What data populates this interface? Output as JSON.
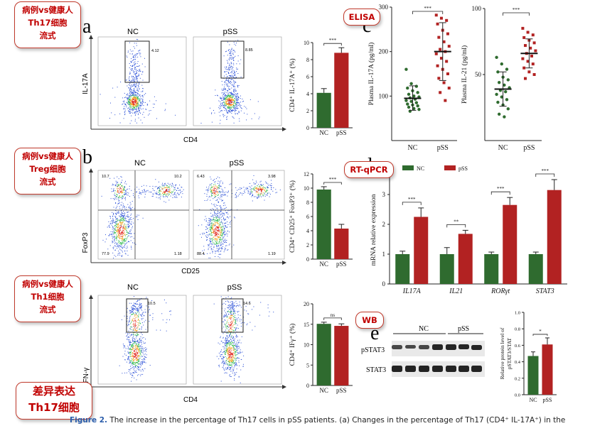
{
  "figure": {
    "panel_letters": {
      "a": "a",
      "b": "b",
      "c": "c",
      "d": "d",
      "e": "e"
    },
    "group_labels": {
      "nc": "NC",
      "pss": "pSS"
    },
    "caption": {
      "figure_label": "Figure 2.",
      "text": " The increase in the percentage of Th17 cells in pSS patients. (a) Changes in the percentage of Th17 (CD4⁺ IL-17A⁺) in the"
    }
  },
  "annotations": {
    "flow_th17": [
      "病例vs健康人",
      "Th17细胞",
      "流式"
    ],
    "flow_treg": [
      "病例vs健康人",
      "Treg细胞",
      "流式"
    ],
    "flow_th1": [
      "病例vs健康人",
      "Th1细胞",
      "流式"
    ],
    "elisa": "ELISA",
    "rtqpcr": "RT-qPCR",
    "wb": "WB",
    "conclusion": [
      "差异表达",
      "Th17细胞"
    ]
  },
  "flow_panels": {
    "a": {
      "y_label": "IL-17A",
      "x_label": "CD4",
      "nc_gate": "4.12",
      "pss_gate": "8.85"
    },
    "b": {
      "y_label": "FoxP3",
      "x_label": "CD25",
      "nc_quadrants": [
        "10.7",
        "10.2",
        "77.9",
        "1.18"
      ],
      "pss_quadrants": [
        "6.43",
        "3.98",
        "88.4",
        "1.19"
      ]
    },
    "c": {
      "y_label": "IFN-γ",
      "x_label": "CD4",
      "nc_gate": "10.5",
      "pss_gate": "14.6"
    }
  },
  "colors": {
    "nc": "#2f6b2f",
    "pss": "#b22222",
    "callout": "#c00000"
  },
  "chart_data": [
    {
      "type": "bar",
      "id": "th17_pct",
      "ylabel": "CD4⁺ IL-17A⁺ (%)",
      "categories": [
        "NC",
        "pSS"
      ],
      "values": [
        4.1,
        8.8
      ],
      "errors": [
        0.5,
        0.6
      ],
      "ylim": [
        0,
        10
      ],
      "yticks": [
        0,
        2,
        4,
        6,
        8,
        10
      ],
      "significance": "***"
    },
    {
      "type": "bar",
      "id": "treg_pct",
      "ylabel": "CD4⁺ CD25⁺ FoxP3⁺ (%)",
      "categories": [
        "NC",
        "pSS"
      ],
      "values": [
        9.8,
        4.3
      ],
      "errors": [
        0.4,
        0.6
      ],
      "ylim": [
        0,
        12
      ],
      "yticks": [
        0,
        2,
        4,
        6,
        8,
        10,
        12
      ],
      "significance": "***"
    },
    {
      "type": "bar",
      "id": "th1_pct",
      "ylabel": "CD4⁺ IFγ⁺ (%)",
      "categories": [
        "NC",
        "pSS"
      ],
      "values": [
        15.1,
        14.6
      ],
      "errors": [
        0.4,
        0.5
      ],
      "ylim": [
        0,
        20
      ],
      "yticks": [
        0,
        5,
        10,
        15,
        20
      ],
      "significance": "ns"
    },
    {
      "type": "scatter",
      "id": "il17a_plasma",
      "ylabel": "Plasma IL-17A (pg/ml)",
      "categories": [
        "NC",
        "pSS"
      ],
      "ylim": [
        0,
        300
      ],
      "yticks": [
        100,
        200,
        300
      ],
      "significance": "***",
      "series": [
        {
          "name": "NC",
          "mean": 95,
          "sd_low": 68,
          "sd_high": 123,
          "values": [
            160,
            128,
            122,
            118,
            112,
            108,
            104,
            100,
            98,
            96,
            93,
            90,
            88,
            85,
            82,
            80,
            78,
            75,
            72,
            70,
            66
          ]
        },
        {
          "name": "pSS",
          "mean": 200,
          "sd_low": 135,
          "sd_high": 265,
          "values": [
            282,
            275,
            270,
            262,
            248,
            240,
            232,
            222,
            212,
            205,
            200,
            195,
            185,
            178,
            168,
            160,
            150,
            140,
            130,
            118,
            108,
            90
          ]
        }
      ]
    },
    {
      "type": "scatter",
      "id": "il21_plasma",
      "ylabel": "Plasma IL-21 (pg/ml)",
      "categories": [
        "NC",
        "pSS"
      ],
      "ylim": [
        0,
        100
      ],
      "yticks": [
        50,
        100
      ],
      "significance": "***",
      "series": [
        {
          "name": "NC",
          "mean": 39,
          "sd_low": 26,
          "sd_high": 52,
          "values": [
            63,
            58,
            54,
            52,
            48,
            46,
            44,
            42,
            40,
            38,
            37,
            35,
            33,
            31,
            29,
            27,
            24,
            20,
            18
          ]
        },
        {
          "name": "pSS",
          "mean": 66,
          "sd_low": 55,
          "sd_high": 77,
          "values": [
            85,
            82,
            80,
            78,
            76,
            74,
            72,
            70,
            68,
            66,
            64,
            62,
            60,
            58,
            55,
            52,
            50,
            47
          ]
        }
      ]
    },
    {
      "type": "bar",
      "id": "mrna_expression",
      "ylabel": "mRNA relative expression",
      "categories": [
        "IL17A",
        "IL21",
        "RORγt",
        "STAT3"
      ],
      "ylim": [
        0,
        4
      ],
      "yticks": [
        0,
        1,
        2,
        3,
        4
      ],
      "legend": [
        "NC",
        "pSS"
      ],
      "significance": [
        "***",
        "**",
        "***",
        "***"
      ],
      "series": [
        {
          "name": "NC",
          "values": [
            1.0,
            1.0,
            1.0,
            1.0
          ],
          "errors": [
            0.1,
            0.22,
            0.07,
            0.07
          ]
        },
        {
          "name": "pSS",
          "values": [
            2.25,
            1.68,
            2.65,
            3.15
          ],
          "errors": [
            0.3,
            0.12,
            0.25,
            0.35
          ]
        }
      ]
    },
    {
      "type": "bar",
      "id": "pstat3_ratio",
      "ylabel": "Relative protein level of pSTAT3/STAT",
      "categories": [
        "NC",
        "pSS"
      ],
      "values": [
        0.47,
        0.61
      ],
      "errors": [
        0.05,
        0.08
      ],
      "ylim": [
        0,
        1.0
      ],
      "yticks": [
        0.0,
        0.2,
        0.4,
        0.6,
        0.8,
        1.0
      ],
      "significance": "*"
    },
    {
      "type": "table",
      "id": "western_blot",
      "rows": [
        "pSTAT3",
        "STAT3"
      ],
      "groups": [
        "NC",
        "pSS"
      ]
    }
  ]
}
